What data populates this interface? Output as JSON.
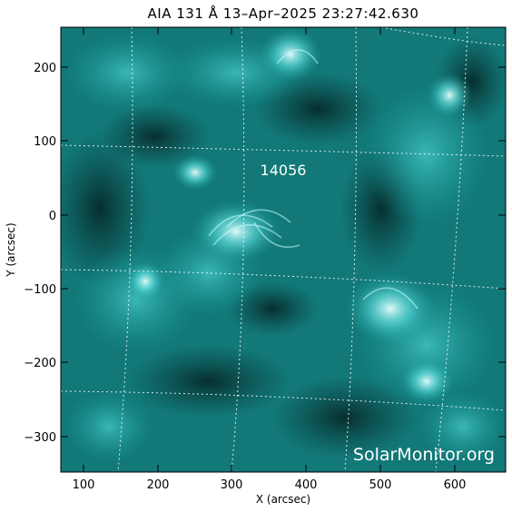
{
  "title": "AIA 131 Å 13–Apr–2025 23:27:42.630",
  "axes": {
    "xlabel": "X (arcsec)",
    "ylabel": "Y (arcsec)",
    "x_ticks": [
      "100",
      "200",
      "300",
      "400",
      "500",
      "600"
    ],
    "y_ticks": [
      "200",
      "100",
      "0",
      "−100",
      "−200",
      "−300"
    ],
    "xlim": [
      72,
      672
    ],
    "ylim": [
      -350,
      255
    ]
  },
  "active_region_label": "14056",
  "watermark": "SolarMonitor.org",
  "colors": {
    "background": "#ffffff",
    "image_dark": "#0a3c3c",
    "image_mid": "#1a9e9e",
    "image_bright": "#b8ffff",
    "grid": "#ffffff"
  }
}
